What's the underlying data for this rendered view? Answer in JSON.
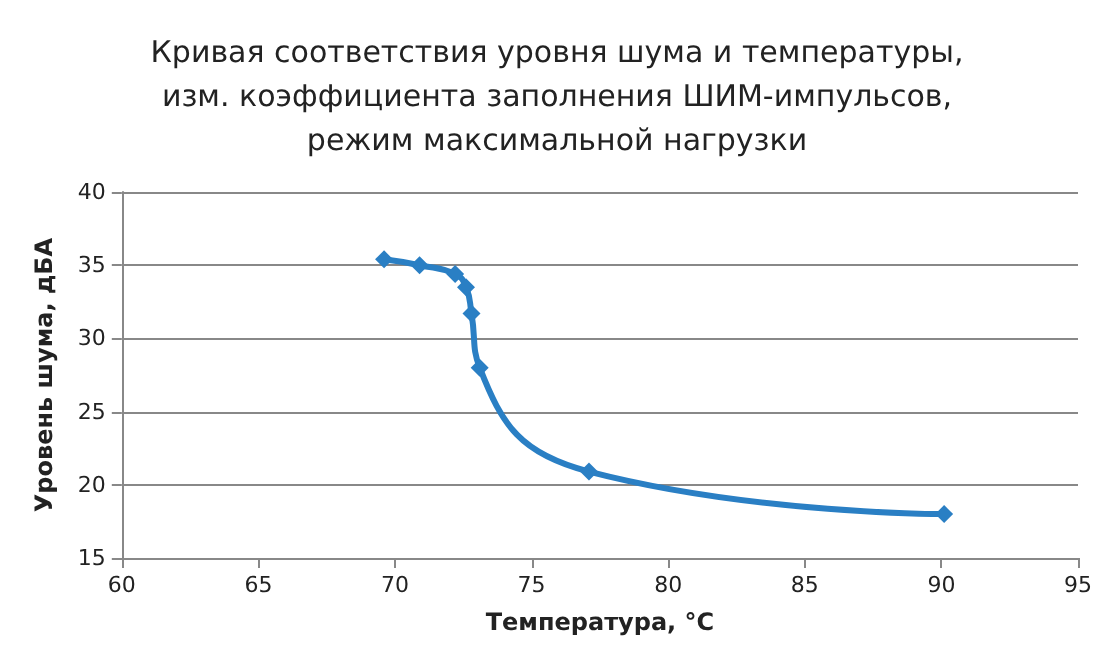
{
  "chart_data": {
    "type": "line",
    "title": "Кривая соответствия уровня шума и температуры,\nизм. коэффициента заполнения ШИМ-импульсов,\nрежим максимальной нагрузки",
    "xlabel": "Температура, °C",
    "ylabel": "Уровень шума, дБА",
    "x": [
      69.6,
      70.9,
      72.2,
      72.6,
      72.8,
      73.1,
      77.1,
      90.1
    ],
    "series": [
      {
        "color": "#2a7fc4",
        "values": [
          35.4,
          35.0,
          34.4,
          33.5,
          31.7,
          28.0,
          20.9,
          18.0
        ]
      }
    ],
    "xlim": [
      60,
      95
    ],
    "xticks": [
      60,
      65,
      70,
      75,
      80,
      85,
      90,
      95
    ],
    "ylim": [
      15,
      40
    ],
    "yticks": [
      15,
      20,
      25,
      30,
      35,
      40
    ],
    "grid": "y",
    "marker": "diamond",
    "line_style": "solid"
  }
}
